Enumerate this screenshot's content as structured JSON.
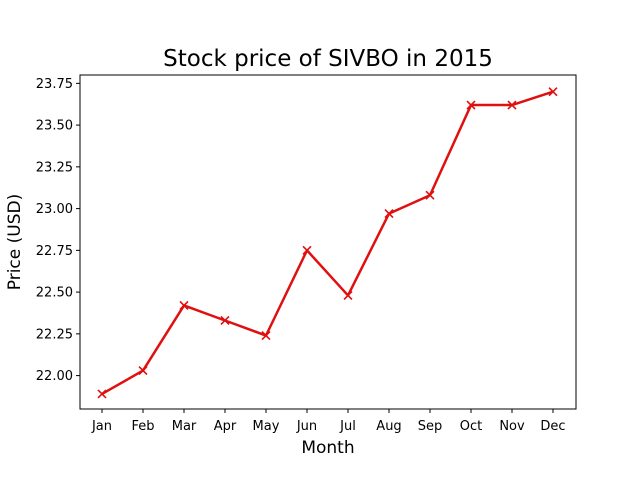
{
  "chart_data": {
    "type": "line",
    "title": "Stock price of SIVBO in 2015",
    "xlabel": "Month",
    "ylabel": "Price (USD)",
    "categories": [
      "Jan",
      "Feb",
      "Mar",
      "Apr",
      "May",
      "Jun",
      "Jul",
      "Aug",
      "Sep",
      "Oct",
      "Nov",
      "Dec"
    ],
    "series": [
      {
        "values": [
          21.89,
          22.03,
          22.42,
          22.33,
          22.24,
          22.75,
          22.48,
          22.97,
          23.08,
          23.62,
          23.62,
          23.7
        ],
        "color": "#e01010",
        "marker": "x"
      }
    ],
    "yticks": [
      "22.00",
      "22.25",
      "22.50",
      "22.75",
      "23.00",
      "23.25",
      "23.50",
      "23.75"
    ],
    "ylim": [
      21.8,
      23.8
    ],
    "grid": false,
    "legend": "none"
  }
}
